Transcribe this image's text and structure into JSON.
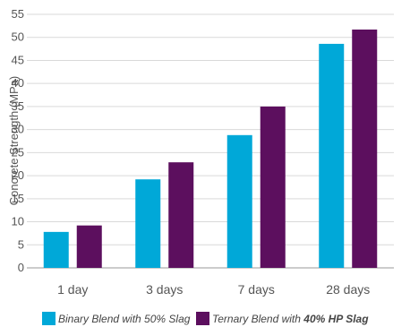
{
  "chart_data": {
    "type": "bar",
    "title": "",
    "xlabel": "",
    "ylabel": "Concrete Strength (MPa)",
    "ylim": [
      0,
      55
    ],
    "yticks": [
      0,
      5,
      10,
      15,
      20,
      25,
      30,
      35,
      40,
      45,
      50,
      55
    ],
    "grid": true,
    "legend_position": "bottom",
    "categories": [
      "1 day",
      "3 days",
      "7 days",
      "28 days"
    ],
    "series": [
      {
        "name": "Binary Blend with 50% Slag",
        "color": "#00A8D8",
        "values": [
          7.8,
          19.2,
          28.8,
          48.6
        ]
      },
      {
        "name": "Ternary Blend with 40% HP Slag",
        "color": "#5C0F5E",
        "values": [
          9.2,
          22.9,
          35.0,
          51.7
        ]
      }
    ]
  },
  "legend": {
    "binary_text": "Binary Blend with 50% Slag",
    "ternary_prefix": "Ternary Blend with ",
    "ternary_bold": "40% HP Slag"
  }
}
